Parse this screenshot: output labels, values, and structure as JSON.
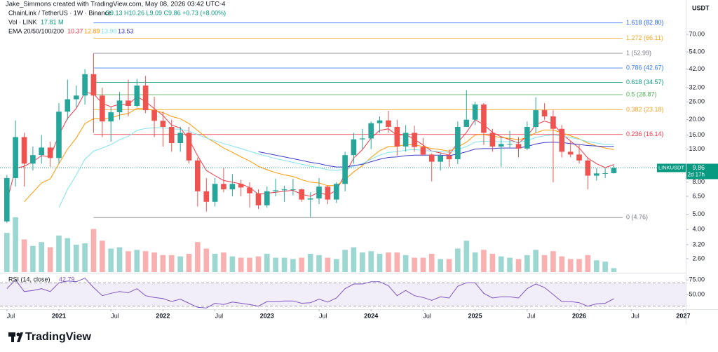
{
  "chart_data": {
    "type": "candlestick",
    "credit": "Jake_Simmons created with TradingView.com, May 08, 2026 03:42 UTC-4",
    "title": "ChainLink / TetherUS · 1W · Binance",
    "ohlc_text": "O9.13 H10.26 L9.09 C9.86 +0.73 (+8.00%)",
    "volume_label": "Vol · LINK",
    "volume_value": "17.81 M",
    "ema_label": "EMA 20/50/100/200",
    "ema_legend": [
      "10.37",
      "12.89",
      "13.90",
      "13.53"
    ],
    "rsi_label": "RSI (14, close)",
    "rsi_value": "42.79",
    "y_axis_title": "USDT",
    "brand": "TradingView",
    "log_scale": true,
    "up_color": "#26a69a",
    "down_color": "#ef5350",
    "xlim": [
      2020.434,
      2027.024
    ],
    "xticks": [
      {
        "value": 2020.5,
        "label": "Jul"
      },
      2021,
      {
        "value": 2021.5,
        "label": "Jul"
      },
      2022,
      {
        "value": 2022.5,
        "label": "Jul"
      },
      2023,
      {
        "value": 2023.5,
        "label": "Jul"
      },
      2024,
      {
        "value": 2024.5,
        "label": "Jul"
      },
      2025,
      {
        "value": 2025.5,
        "label": "Jul"
      },
      2026,
      {
        "value": 2026.5,
        "label": "Jul"
      },
      2027
    ],
    "ylim": [
      2.14,
      115.8
    ],
    "yticks": [
      {
        "value": 70,
        "label": "70.00"
      },
      {
        "value": 54,
        "label": "54.00"
      },
      {
        "value": 42,
        "label": "42.00"
      },
      {
        "value": 32,
        "label": "32.00"
      },
      {
        "value": 26,
        "label": "26.00"
      },
      {
        "value": 20,
        "label": "20.00"
      },
      {
        "value": 16,
        "label": "16.00"
      },
      {
        "value": 13,
        "label": "13.00"
      },
      {
        "value": 8,
        "label": "8.00"
      },
      {
        "value": 6.5,
        "label": "6.50"
      },
      {
        "value": 5,
        "label": "5.00"
      },
      {
        "value": 4,
        "label": "4.00"
      },
      {
        "value": 3.2,
        "label": "3.20"
      },
      {
        "value": 2.6,
        "label": "2.60"
      }
    ],
    "x": [
      2020.5,
      2020.583,
      2020.667,
      2020.75,
      2020.833,
      2020.917,
      2021,
      2021.083,
      2021.167,
      2021.25,
      2021.333,
      2021.417,
      2021.5,
      2021.583,
      2021.667,
      2021.75,
      2021.833,
      2021.917,
      2022,
      2022.083,
      2022.167,
      2022.25,
      2022.333,
      2022.417,
      2022.5,
      2022.583,
      2022.667,
      2022.75,
      2022.833,
      2022.917,
      2023,
      2023.083,
      2023.167,
      2023.25,
      2023.333,
      2023.417,
      2023.5,
      2023.583,
      2023.667,
      2023.75,
      2023.833,
      2023.917,
      2024,
      2024.083,
      2024.167,
      2024.25,
      2024.333,
      2024.417,
      2024.5,
      2024.583,
      2024.667,
      2024.75,
      2024.833,
      2024.917,
      2025,
      2025.083,
      2025.167,
      2025.25,
      2025.333,
      2025.417,
      2025.5,
      2025.583,
      2025.667,
      2025.75,
      2025.833,
      2025.917,
      2026,
      2026.083,
      2026.167,
      2026.25,
      2026.333
    ],
    "open": [
      4.5,
      8.5,
      15.5,
      10.5,
      11.9,
      13.3,
      11.4,
      22.5,
      27,
      28.5,
      39,
      28.5,
      19.5,
      22.3,
      26.5,
      24.5,
      33,
      23,
      19.7,
      18,
      14.2,
      16.5,
      11,
      7,
      6,
      7.8,
      7.2,
      7.8,
      7.4,
      6.8,
      5.7,
      7,
      7.1,
      7.2,
      7.2,
      6.2,
      6.3,
      7.5,
      6.2,
      7.8,
      11.9,
      15,
      15.2,
      19,
      19.8,
      18,
      13.5,
      16.5,
      13.4,
      12,
      10.8,
      11.8,
      11.2,
      18,
      20,
      25,
      16.5,
      13.5,
      14,
      14,
      13.1,
      18,
      23,
      21,
      17.5,
      12.5,
      12,
      11,
      8.8,
      9.1,
      9.13
    ],
    "high": [
      8.9,
      19.8,
      16.5,
      13.5,
      16.0,
      14.5,
      25.5,
      36.0,
      33.0,
      42.0,
      52.9,
      32.0,
      24.0,
      30.0,
      36.0,
      36.5,
      38.0,
      28.0,
      22.5,
      20.0,
      18.0,
      18.0,
      11.5,
      8.5,
      8.5,
      9.8,
      9.0,
      8.3,
      8.0,
      7.2,
      7.5,
      8.4,
      7.6,
      8.4,
      7.3,
      6.9,
      8.5,
      7.6,
      8.0,
      12.5,
      16.5,
      17.5,
      19.5,
      21.0,
      22.8,
      20.0,
      18.5,
      18.3,
      15.3,
      12.2,
      12.3,
      12.9,
      19.5,
      30.9,
      26.0,
      25.5,
      17.5,
      15.5,
      17.0,
      15.5,
      19.5,
      27.8,
      25.5,
      23.0,
      18.5,
      14.5,
      14.0,
      11.5,
      9.8,
      9.8,
      10.26
    ],
    "low": [
      4.4,
      7.5,
      7.5,
      9.5,
      10.5,
      10.0,
      10.5,
      20.0,
      24.0,
      25.0,
      16.5,
      15.5,
      14.5,
      20.0,
      21.0,
      24.0,
      22.0,
      15.5,
      13.5,
      12.5,
      12.5,
      10.5,
      5.6,
      5.2,
      5.6,
      6.9,
      6.5,
      6.5,
      5.5,
      5.4,
      5.5,
      6.5,
      6.0,
      6.6,
      6.0,
      4.8,
      5.8,
      5.8,
      5.9,
      7.0,
      10.5,
      13.0,
      13.0,
      16.5,
      16.5,
      11.8,
      12.5,
      12.5,
      11.8,
      8.1,
      9.5,
      10.0,
      10.4,
      18.0,
      18.5,
      13.8,
      12.5,
      10.0,
      13.2,
      11.5,
      12.8,
      16.5,
      20.0,
      8.0,
      11.5,
      11.5,
      10.5,
      7.2,
      8.2,
      8.5,
      9.09
    ],
    "close": [
      8.5,
      15.5,
      10.5,
      11.9,
      13.3,
      11.4,
      22.5,
      27,
      28.5,
      39,
      28.5,
      19.5,
      22.3,
      26.5,
      24.5,
      33,
      23,
      19.7,
      18,
      14.2,
      16.5,
      11,
      7,
      6,
      7.8,
      7.2,
      7.8,
      7.4,
      6.8,
      5.7,
      7,
      7.1,
      7.2,
      7.2,
      6.2,
      6.3,
      7.5,
      6.2,
      7.8,
      11.9,
      15,
      15.2,
      19,
      19.8,
      18,
      13.5,
      16.5,
      13.4,
      12,
      10.8,
      11.8,
      11.2,
      18,
      20,
      25,
      16.5,
      13.5,
      14,
      14,
      13.1,
      18,
      23,
      21,
      17.5,
      12.5,
      12,
      11,
      8.8,
      9.1,
      9.13,
      9.86
    ],
    "volume": {
      "ylim": [
        0,
        580
      ],
      "values": [
        300,
        420,
        250,
        200,
        230,
        190,
        280,
        260,
        210,
        220,
        330,
        240,
        180,
        190,
        160,
        170,
        160,
        150,
        130,
        130,
        120,
        140,
        230,
        180,
        140,
        150,
        120,
        110,
        110,
        120,
        140,
        110,
        110,
        100,
        110,
        140,
        130,
        110,
        100,
        170,
        190,
        150,
        160,
        140,
        150,
        150,
        130,
        110,
        110,
        140,
        100,
        100,
        180,
        240,
        150,
        170,
        140,
        120,
        110,
        100,
        130,
        170,
        130,
        160,
        120,
        100,
        100,
        130,
        90,
        80,
        30
      ]
    },
    "ema": [
      {
        "name": "EMA 20",
        "color": "#f23645",
        "values": [
          6.0,
          9.8,
          10.1,
          10.8,
          11.8,
          11.6,
          16.0,
          20.4,
          23.6,
          29.8,
          29.3,
          25.4,
          24.2,
          25.1,
          24.9,
          28.1,
          26.1,
          23.5,
          21.3,
          18.5,
          17.7,
          15.0,
          11.8,
          9.5,
          8.8,
          8.2,
          8.0,
          7.8,
          7.4,
          6.7,
          6.8,
          6.9,
          7.0,
          7.1,
          6.7,
          6.5,
          6.9,
          6.6,
          7.1,
          9.0,
          11.4,
          12.9,
          15.3,
          17.1,
          17.5,
          15.9,
          16.1,
          15.0,
          13.8,
          12.6,
          12.3,
          11.9,
          14.3,
          16.6,
          20.0,
          18.6,
          16.6,
          15.6,
          14.9,
          14.2,
          15.7,
          18.6,
          19.6,
          18.8,
          16.3,
          14.6,
          13.2,
          11.4,
          10.5,
          9.9,
          10.37
        ]
      },
      {
        "name": "EMA 50",
        "color": "#ff9800",
        "values": [
          null,
          null,
          6.0,
          6.9,
          7.9,
          8.4,
          10.5,
          13.0,
          15.3,
          18.9,
          20.3,
          20.2,
          20.5,
          21.4,
          21.9,
          23.6,
          23.5,
          22.9,
          22.2,
          21.0,
          20.3,
          18.9,
          17.1,
          15.4,
          14.3,
          13.2,
          12.4,
          11.6,
          10.9,
          10.1,
          9.6,
          9.2,
          8.9,
          8.7,
          8.3,
          8.0,
          7.9,
          7.6,
          7.6,
          8.3,
          9.3,
          10.2,
          11.5,
          12.7,
          13.5,
          13.5,
          13.9,
          13.8,
          13.5,
          13.1,
          12.9,
          12.6,
          13.4,
          14.4,
          16.0,
          16.1,
          15.7,
          15.4,
          15.2,
          14.9,
          15.4,
          16.5,
          17.2,
          17.2,
          16.5,
          15.8,
          15.1,
          14.2,
          13.6,
          13.2,
          12.89
        ]
      },
      {
        "name": "EMA 100",
        "color": "#7fe3ee",
        "values": [
          null,
          null,
          null,
          null,
          null,
          null,
          5.5,
          7.2,
          8.9,
          11.2,
          12.6,
          13.2,
          13.9,
          14.9,
          15.7,
          17.1,
          17.6,
          17.8,
          17.8,
          17.5,
          17.4,
          16.9,
          16.1,
          15.3,
          14.7,
          14.1,
          13.6,
          13.1,
          12.6,
          12.1,
          11.7,
          11.3,
          11.0,
          10.7,
          10.4,
          10.1,
          9.9,
          9.6,
          9.5,
          9.7,
          10.1,
          10.5,
          11.2,
          11.9,
          12.4,
          12.5,
          12.8,
          12.9,
          12.8,
          12.6,
          12.5,
          12.4,
          12.9,
          13.5,
          14.4,
          14.6,
          14.5,
          14.5,
          14.5,
          14.4,
          14.7,
          15.4,
          15.8,
          16.0,
          15.7,
          15.4,
          15.0,
          14.5,
          14.2,
          13.9,
          13.9
        ]
      },
      {
        "name": "EMA 200",
        "color": "#3d3dc8",
        "values": [
          null,
          null,
          null,
          null,
          null,
          null,
          null,
          null,
          null,
          null,
          null,
          null,
          null,
          null,
          null,
          null,
          null,
          null,
          null,
          null,
          null,
          null,
          null,
          null,
          null,
          null,
          null,
          null,
          null,
          12.5,
          12.2,
          11.9,
          11.6,
          11.3,
          11.0,
          10.7,
          10.5,
          10.2,
          10.0,
          10.0,
          10.2,
          10.4,
          10.8,
          11.2,
          11.5,
          11.6,
          11.8,
          11.9,
          11.9,
          11.9,
          11.9,
          11.8,
          12.1,
          12.5,
          13.0,
          13.1,
          13.1,
          13.2,
          13.2,
          13.2,
          13.5,
          14.0,
          14.3,
          14.4,
          14.3,
          14.1,
          13.9,
          13.7,
          13.6,
          13.5,
          13.53
        ]
      }
    ],
    "rsi": {
      "color": "#7e57c2",
      "ylim": [
        26,
        86
      ],
      "band": [
        30,
        70
      ],
      "yticks": [
        {
          "value": 75,
          "label": "75.00"
        },
        {
          "value": 50,
          "label": "50.00"
        }
      ],
      "values": [
        60,
        75,
        55,
        57,
        60,
        55,
        70,
        73,
        72,
        78,
        62,
        48,
        52,
        55,
        53,
        60,
        48,
        45,
        43,
        38,
        42,
        35,
        28,
        27,
        35,
        33,
        37,
        35,
        33,
        30,
        38,
        38,
        39,
        39,
        35,
        36,
        42,
        37,
        44,
        60,
        68,
        68,
        72,
        72,
        65,
        48,
        57,
        48,
        45,
        40,
        46,
        44,
        64,
        70,
        70,
        52,
        44,
        46,
        46,
        44,
        60,
        68,
        62,
        50,
        38,
        38,
        36,
        30,
        34,
        35,
        42.79
      ]
    },
    "fib_from": 2021.333,
    "fib_levels": [
      {
        "label": "1.618 (82.80)",
        "value": 82.8,
        "color": "#2962ff"
      },
      {
        "label": "1.272 (66.11)",
        "value": 66.11,
        "color": "#f5a623"
      },
      {
        "label": "1 (52.99)",
        "value": 52.99,
        "color": "#787b86"
      },
      {
        "label": "0.786 (42.67)",
        "value": 42.67,
        "color": "#3179f5"
      },
      {
        "label": "0.618 (34.57)",
        "value": 34.57,
        "color": "#089981"
      },
      {
        "label": "0.5 (28.87)",
        "value": 28.87,
        "color": "#4caf50"
      },
      {
        "label": "0.382 (23.18)",
        "value": 23.18,
        "color": "#f5a623"
      },
      {
        "label": "0.236 (16.14)",
        "value": 16.14,
        "color": "#f23645"
      },
      {
        "label": "0 (4.76)",
        "value": 4.76,
        "color": "#787b86"
      }
    ],
    "price_label": {
      "symbol": "LINKUSDT",
      "value": 9.86,
      "label": "9.86",
      "countdown": "2d 17h",
      "color": "#089981"
    }
  }
}
